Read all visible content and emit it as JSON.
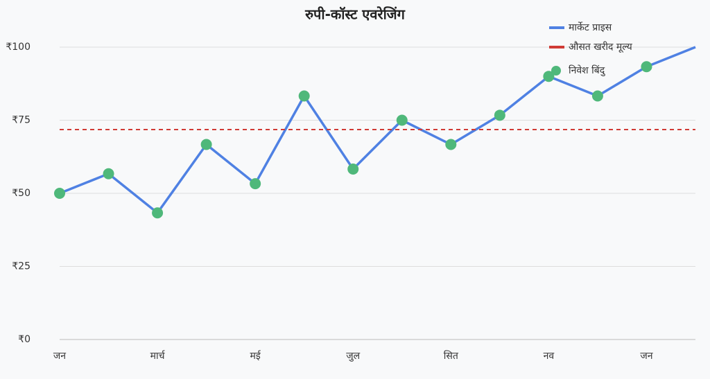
{
  "chart_data": {
    "type": "line",
    "title": "रुपी-कॉस्ट एवरेजिंग",
    "categories": [
      "जन",
      null,
      "मार्च",
      null,
      "मई",
      null,
      "जुल",
      null,
      "सित",
      null,
      "नव",
      null,
      "जन",
      null
    ],
    "series": [
      {
        "name": "मार्केट प्राइस",
        "color": "#4f81e3",
        "values": [
          50,
          56.7,
          43.3,
          66.7,
          53.3,
          83.3,
          58.3,
          75,
          66.7,
          76.7,
          90,
          83.3,
          93.3,
          100
        ]
      },
      {
        "name": "औसत खरीद मूल्य",
        "color": "#d03b35",
        "value": 71.8
      },
      {
        "name": "निवेश बिंदु",
        "color": "#4fb87a",
        "values": [
          50,
          56.7,
          43.3,
          66.7,
          53.3,
          83.3,
          58.3,
          75,
          66.7,
          76.7,
          90,
          83.3,
          93.3,
          null
        ]
      }
    ],
    "ylim": [
      0,
      100
    ],
    "yticks": [
      {
        "value": 0,
        "label": "₹0"
      },
      {
        "value": 25,
        "label": "₹25"
      },
      {
        "value": 50,
        "label": "₹50"
      },
      {
        "value": 75,
        "label": "₹75"
      },
      {
        "value": 100,
        "label": "₹100"
      }
    ],
    "grid": true
  }
}
